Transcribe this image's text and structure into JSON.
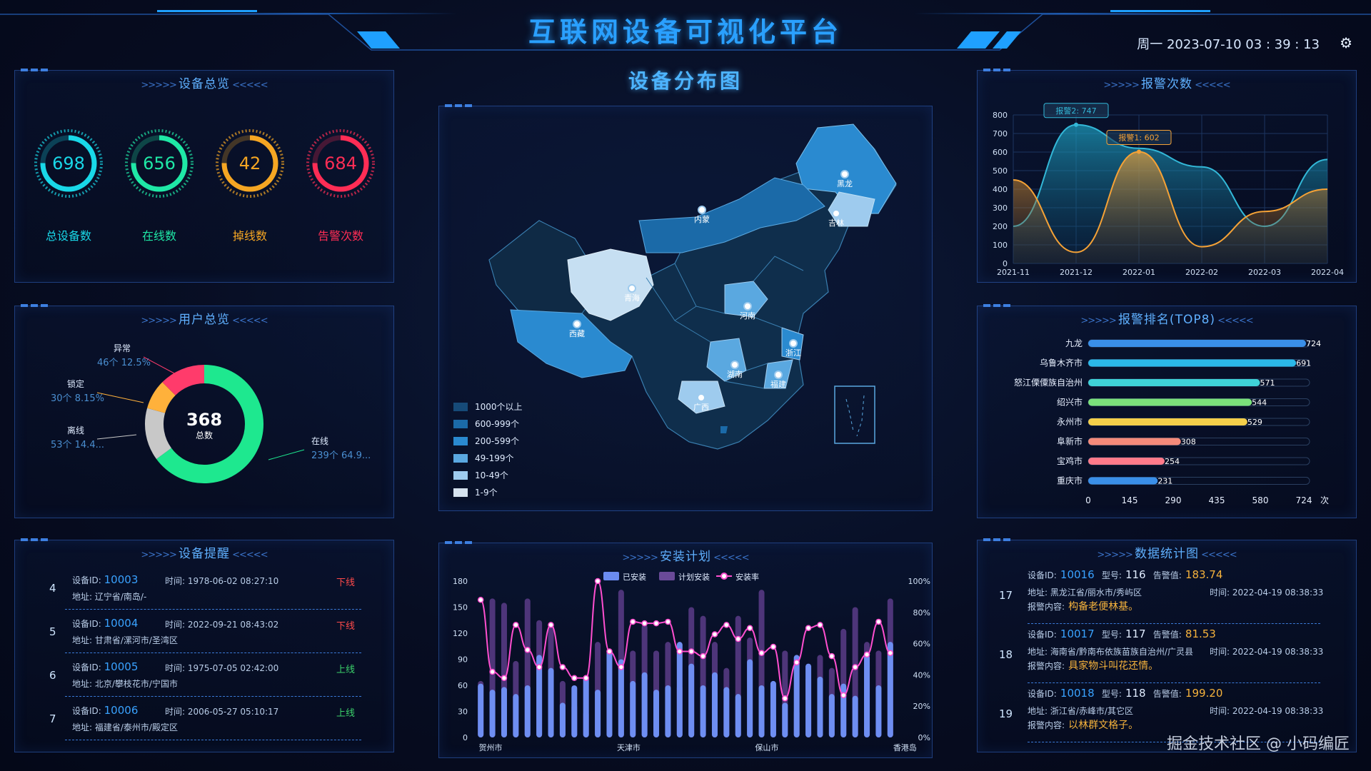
{
  "header": {
    "title": "互联网设备可视化平台",
    "datetime": "周一 2023-07-10 03 : 39 : 13",
    "settings_icon": "gear-icon"
  },
  "overview": {
    "title": "设备总览",
    "items": [
      {
        "value": "698",
        "label": "总设备数",
        "color": "#19d8e8"
      },
      {
        "value": "656",
        "label": "在线数",
        "color": "#1fe8a6"
      },
      {
        "value": "42",
        "label": "掉线数",
        "color": "#f5a623"
      },
      {
        "value": "684",
        "label": "告警次数",
        "color": "#ff2d55"
      }
    ]
  },
  "users": {
    "title": "用户总览",
    "total": "368",
    "total_label": "总数",
    "segments": [
      {
        "name": "在线",
        "count": "239个",
        "pct": "64.9...",
        "value": 239,
        "color": "#1ee88f"
      },
      {
        "name": "离线",
        "count": "53个",
        "pct": "14.4...",
        "value": 53,
        "color": "#c8c8c8"
      },
      {
        "name": "锁定",
        "count": "30个",
        "pct": "8.15%",
        "value": 30,
        "color": "#ffb13b"
      },
      {
        "name": "异常",
        "count": "46个",
        "pct": "12.5%",
        "value": 46,
        "color": "#ff3b6b"
      }
    ]
  },
  "reminders": {
    "title": "设备提醒",
    "id_label": "设备ID:",
    "time_label": "时间:",
    "addr_label": "地址:",
    "rows": [
      {
        "idx": "4",
        "id": "10003",
        "time": "1978-06-02 08:27:10",
        "addr": "辽宁省/南岛/-",
        "status": "下线",
        "online": false
      },
      {
        "idx": "5",
        "id": "10004",
        "time": "2022-09-21 08:43:02",
        "addr": "甘肃省/漯河市/圣湾区",
        "status": "下线",
        "online": false
      },
      {
        "idx": "6",
        "id": "10005",
        "time": "1975-07-05 02:42:00",
        "addr": "北京/攀枝花市/宁国市",
        "status": "上线",
        "online": true
      },
      {
        "idx": "7",
        "id": "10006",
        "time": "2006-05-27 05:10:17",
        "addr": "福建省/泰州市/殿定区",
        "status": "上线",
        "online": true
      }
    ]
  },
  "map": {
    "title": "设备分布图",
    "provinces": [
      "黑龙",
      "吉林",
      "内蒙",
      "青海",
      "西藏",
      "河南",
      "浙江",
      "湖南",
      "福建",
      "广西"
    ],
    "legend": [
      {
        "label": "1000个以上",
        "color": "#164a78"
      },
      {
        "label": "600-999个",
        "color": "#1b6aa8"
      },
      {
        "label": "200-599个",
        "color": "#2a8ad0"
      },
      {
        "label": "49-199个",
        "color": "#5aa8e0"
      },
      {
        "label": "10-49个",
        "color": "#9ecbee"
      },
      {
        "label": "1-9个",
        "color": "#d6e2ee"
      }
    ]
  },
  "install": {
    "title": "安装计划",
    "legend": [
      "已安装",
      "计划安装",
      "安装率"
    ],
    "xlabels": [
      "贺州市",
      "天津市",
      "保山市",
      "香港岛"
    ],
    "yleft": [
      "180",
      "150",
      "120",
      "90",
      "60",
      "30",
      "0"
    ],
    "yright": [
      "100%",
      "80%",
      "60%",
      "40%",
      "20%",
      "0%"
    ]
  },
  "chart_data": [
    {
      "type": "area",
      "title": "报警次数",
      "x": [
        "2021-11",
        "2021-12",
        "2022-01",
        "2022-02",
        "2022-03",
        "2022-04"
      ],
      "ylim": [
        0,
        800
      ],
      "yticks": [
        "800",
        "700",
        "600",
        "500",
        "400",
        "300",
        "200",
        "100",
        "0"
      ],
      "series": [
        {
          "name": "报警2",
          "values": [
            200,
            747,
            620,
            520,
            200,
            560
          ]
        },
        {
          "name": "报警1",
          "values": [
            450,
            60,
            602,
            90,
            280,
            400
          ]
        }
      ],
      "annotations": [
        "报警2: 747",
        "报警1: 602"
      ]
    },
    {
      "type": "bar",
      "title": "报警排名(TOP8)",
      "categories": [
        "九龙",
        "乌鲁木齐市",
        "怒江傈僳族自治州",
        "绍兴市",
        "永州市",
        "阜新市",
        "宝鸡市",
        "重庆市"
      ],
      "values": [
        724,
        691,
        571,
        544,
        529,
        308,
        254,
        231
      ],
      "xticks": [
        "0",
        "145",
        "290",
        "435",
        "580",
        "724"
      ],
      "unit": "次",
      "colors": [
        "#3a8fe8",
        "#2bb8e8",
        "#3fd2d8",
        "#7be07a",
        "#f5cf4a",
        "#f58a7a",
        "#ff7a8a",
        "#3a8fe8"
      ]
    },
    {
      "type": "bar",
      "title": "安装计划",
      "categories": [
        "贺州市",
        "天津市",
        "保山市",
        "香港岛"
      ],
      "ylim": [
        0,
        180
      ],
      "installed": [
        62,
        55,
        58,
        50,
        60,
        95,
        80,
        40,
        60,
        70,
        55,
        100,
        90,
        65,
        75,
        55,
        60,
        110,
        85,
        60,
        75,
        58,
        50,
        90,
        60,
        65,
        40,
        95,
        85,
        70,
        50,
        62,
        48,
        95,
        60,
        110
      ],
      "planned": [
        65,
        160,
        155,
        88,
        160,
        135,
        130,
        65,
        38,
        30,
        110,
        60,
        170,
        100,
        130,
        100,
        110,
        60,
        150,
        140,
        110,
        80,
        140,
        115,
        170,
        28,
        100,
        32,
        70,
        95,
        80,
        125,
        150,
        110,
        100,
        160
      ],
      "rate": [
        88,
        42,
        38,
        72,
        56,
        45,
        72,
        45,
        38,
        38,
        100,
        55,
        45,
        74,
        73,
        73,
        74,
        55,
        55,
        52,
        66,
        72,
        63,
        70,
        54,
        58,
        25,
        48,
        70,
        72,
        52,
        27,
        45,
        53,
        74,
        54
      ]
    },
    {
      "type": "table",
      "title": "数据统计图",
      "rows": [
        {
          "idx": "17",
          "id": "10016",
          "model": "116",
          "alarm": "183.74",
          "addr": "黑龙江省/丽水市/秀屿区",
          "time": "2022-04-19 08:38:33",
          "content": "构备老便林基。"
        },
        {
          "idx": "18",
          "id": "10017",
          "model": "117",
          "alarm": "81.53",
          "addr": "海南省/黔南布依族苗族自治州/广灵县",
          "time": "2022-04-19 08:38:33",
          "content": "具家物斗叫花还情。"
        },
        {
          "idx": "19",
          "id": "10018",
          "model": "118",
          "alarm": "199.20",
          "addr": "浙江省/赤峰市/其它区",
          "time": "2022-04-19 08:38:33",
          "content": "以林群文格子。"
        }
      ]
    }
  ],
  "stats_labels": {
    "id": "设备ID:",
    "model": "型号:",
    "alarm": "告警值:",
    "addr": "地址:",
    "time": "时间:",
    "content": "报警内容:"
  },
  "watermark": "掘金技术社区 @ 小码编匠"
}
